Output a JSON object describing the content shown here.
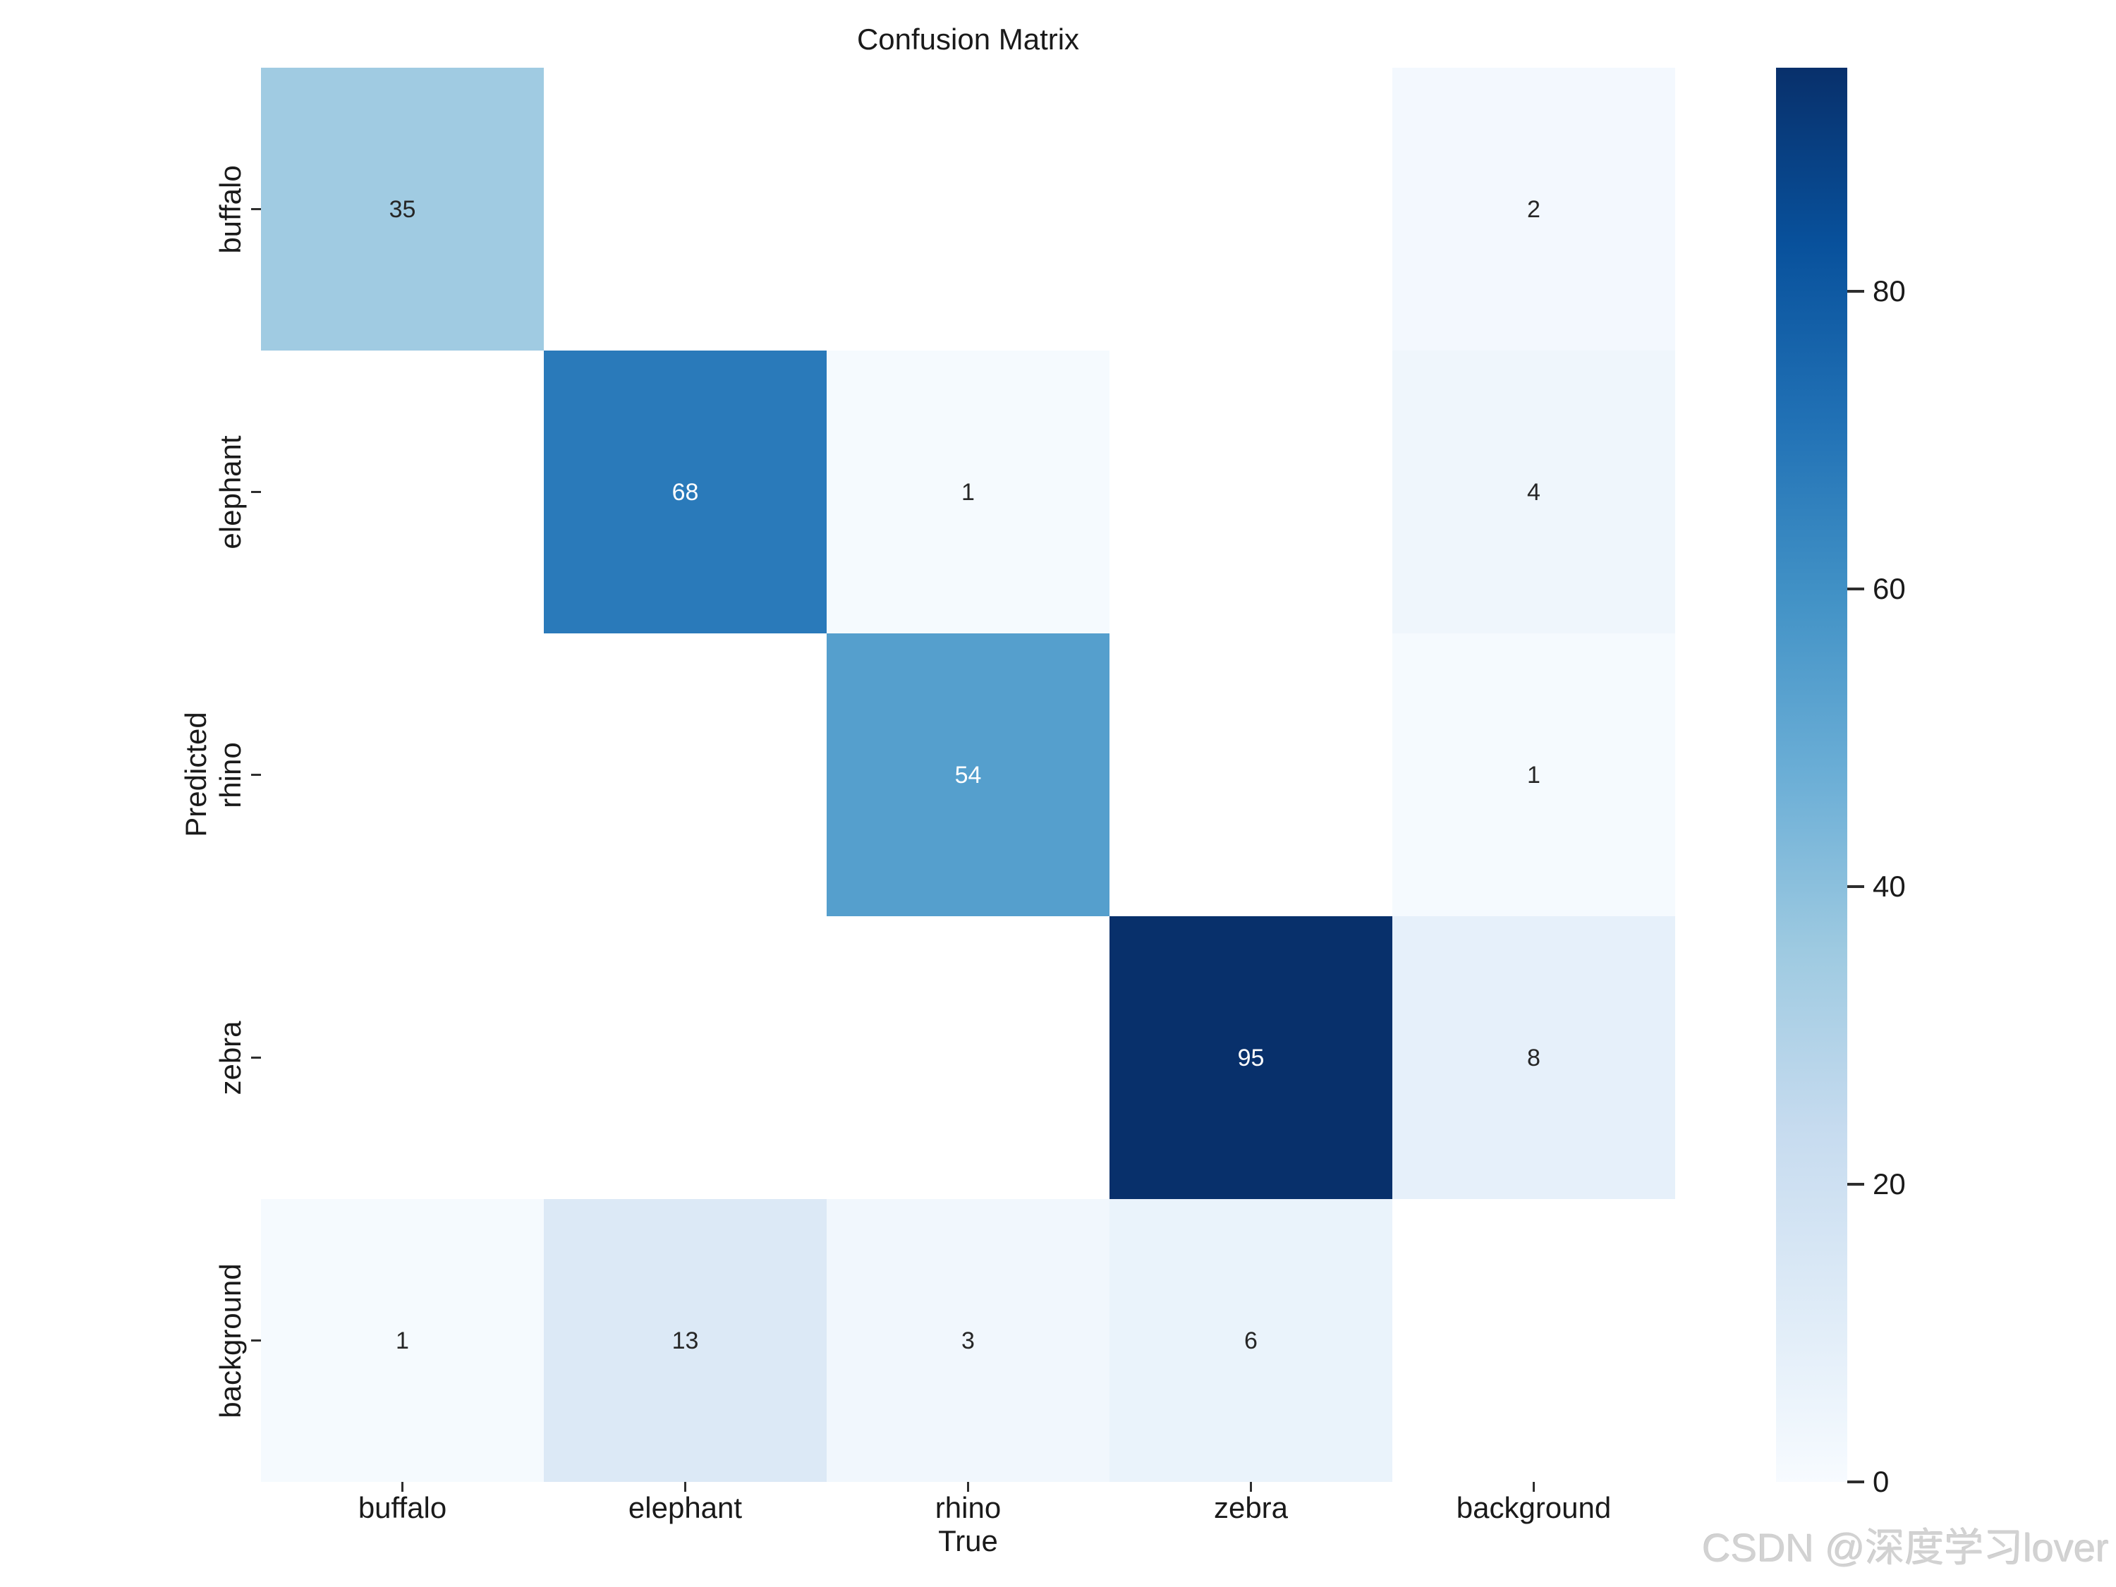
{
  "watermark": {
    "text": "CSDN @深度学习lover"
  },
  "chart_data": {
    "type": "heatmap",
    "title": "Confusion Matrix",
    "xlabel": "True",
    "ylabel": "Predicted",
    "x_categories": [
      "buffalo",
      "elephant",
      "rhino",
      "zebra",
      "background"
    ],
    "y_categories": [
      "buffalo",
      "elephant",
      "rhino",
      "zebra",
      "background"
    ],
    "matrix": [
      [
        35,
        null,
        null,
        null,
        2
      ],
      [
        null,
        68,
        1,
        null,
        4
      ],
      [
        null,
        null,
        54,
        null,
        1
      ],
      [
        null,
        null,
        null,
        95,
        8
      ],
      [
        1,
        13,
        3,
        6,
        null
      ]
    ],
    "vmin": 0,
    "vmax": 95,
    "colormap": "Blues",
    "colormap_stops": [
      "#f7fbff",
      "#deebf7",
      "#c6dbef",
      "#9ecae1",
      "#6baed6",
      "#4292c6",
      "#2171b5",
      "#08519c",
      "#08306b"
    ],
    "colorbar_ticks": [
      0,
      20,
      40,
      60,
      80
    ],
    "empty_cell_color": "#ffffff",
    "annotation_color_dark": "#262626",
    "annotation_color_light": "#ffffff",
    "grid": false,
    "legend_position": "colorbar-right"
  }
}
